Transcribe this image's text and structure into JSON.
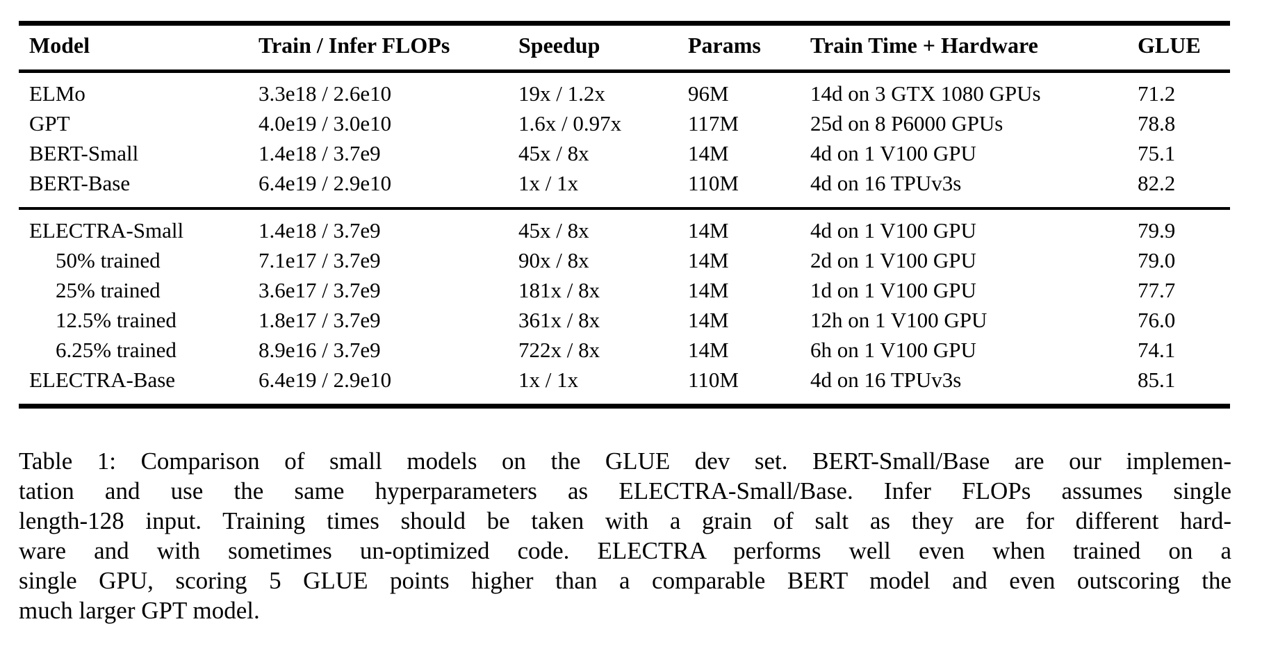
{
  "table": {
    "columns": [
      {
        "key": "model",
        "label": "Model"
      },
      {
        "key": "flops",
        "label": "Train / Infer FLOPs"
      },
      {
        "key": "speedup",
        "label": "Speedup"
      },
      {
        "key": "params",
        "label": "Params"
      },
      {
        "key": "train_time",
        "label": "Train Time + Hardware"
      },
      {
        "key": "glue",
        "label": "GLUE"
      }
    ],
    "sections": [
      {
        "name": "baselines",
        "rows": [
          {
            "model": "ELMo",
            "indent": false,
            "flops": "3.3e18 / 2.6e10",
            "speedup": "19x / 1.2x",
            "params": "96M",
            "train_time": "14d on 3 GTX 1080 GPUs",
            "glue": "71.2"
          },
          {
            "model": "GPT",
            "indent": false,
            "flops": "4.0e19 / 3.0e10",
            "speedup": "1.6x / 0.97x",
            "params": "117M",
            "train_time": "25d on 8 P6000 GPUs",
            "glue": "78.8"
          },
          {
            "model": "BERT-Small",
            "indent": false,
            "flops": "1.4e18 / 3.7e9",
            "speedup": "45x / 8x",
            "params": "14M",
            "train_time": "4d on 1 V100 GPU",
            "glue": "75.1"
          },
          {
            "model": "BERT-Base",
            "indent": false,
            "flops": "6.4e19 / 2.9e10",
            "speedup": "1x / 1x",
            "params": "110M",
            "train_time": "4d on 16 TPUv3s",
            "glue": "82.2"
          }
        ]
      },
      {
        "name": "electra",
        "rows": [
          {
            "model": "ELECTRA-Small",
            "indent": false,
            "flops": "1.4e18 / 3.7e9",
            "speedup": "45x / 8x",
            "params": "14M",
            "train_time": "4d on 1 V100 GPU",
            "glue": "79.9"
          },
          {
            "model": "50% trained",
            "indent": true,
            "flops": "7.1e17 / 3.7e9",
            "speedup": "90x / 8x",
            "params": "14M",
            "train_time": "2d on 1 V100 GPU",
            "glue": "79.0"
          },
          {
            "model": "25% trained",
            "indent": true,
            "flops": "3.6e17 / 3.7e9",
            "speedup": "181x / 8x",
            "params": "14M",
            "train_time": "1d on 1 V100 GPU",
            "glue": "77.7"
          },
          {
            "model": "12.5% trained",
            "indent": true,
            "flops": "1.8e17 / 3.7e9",
            "speedup": "361x / 8x",
            "params": "14M",
            "train_time": "12h on 1 V100 GPU",
            "glue": "76.0"
          },
          {
            "model": "6.25% trained",
            "indent": true,
            "flops": "8.9e16 / 3.7e9",
            "speedup": "722x / 8x",
            "params": "14M",
            "train_time": "6h on 1 V100 GPU",
            "glue": "74.1"
          },
          {
            "model": "ELECTRA-Base",
            "indent": false,
            "flops": "6.4e19 / 2.9e10",
            "speedup": "1x / 1x",
            "params": "110M",
            "train_time": "4d on 16 TPUv3s",
            "glue": "85.1"
          }
        ]
      }
    ]
  },
  "caption": {
    "label": "Table 1:",
    "lines": [
      "Table 1: Comparison of small models on the GLUE dev set. BERT-Small/Base are our implemen-",
      "tation and use the same hyperparameters as ELECTRA-Small/Base. Infer FLOPs assumes single",
      "length-128 input. Training times should be taken with a grain of salt as they are for different hard-",
      "ware and with sometimes un-optimized code. ELECTRA performs well even when trained on a",
      "single GPU, scoring 5 GLUE points higher than a comparable BERT model and even outscoring the",
      "much larger GPT model."
    ]
  },
  "colors": {
    "text": "#000000",
    "background": "#ffffff",
    "rule": "#000000"
  }
}
